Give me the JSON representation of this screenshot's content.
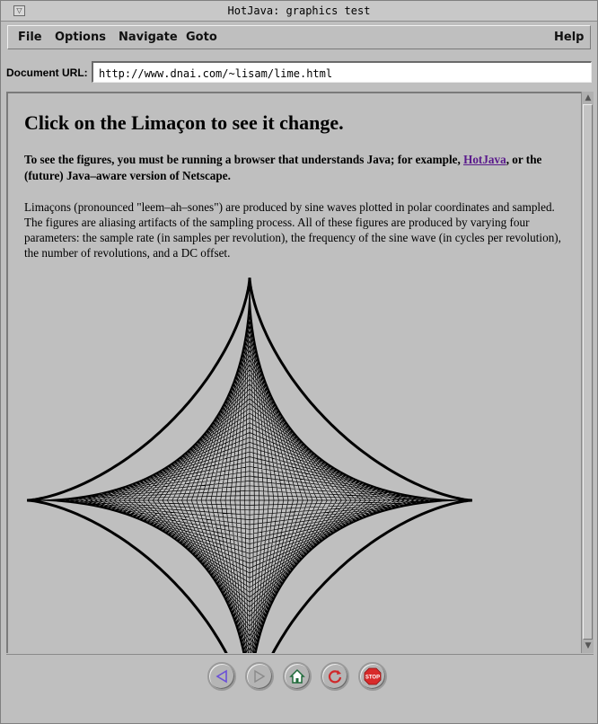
{
  "window": {
    "title": "HotJava: graphics test"
  },
  "menu": {
    "items": [
      "File",
      "Options",
      "Navigate",
      "Goto"
    ],
    "help": "Help"
  },
  "address": {
    "label": "Document URL:",
    "url": "http://www.dnai.com/~lisam/lime.html"
  },
  "page": {
    "heading": "Click on the Limaçon to see it change.",
    "intro_before_link": "To see the figures, you must be running a browser that understands Java; for example, ",
    "intro_link": "HotJava",
    "intro_after_link": ", or the (future) Java–aware version of Netscape.",
    "body": "Limaçons (pronounced \"leem–ah–sones\") are produced by sine waves plotted in polar coordinates and sampled. The figures are aliasing artifacts of the sampling process. All of these figures are produced by varying four parameters: the sample rate (in samples per revolution), the frequency of the sine wave (in cycles per revolution), the number of revolutions, and a DC offset."
  },
  "toolbar": {
    "buttons": [
      "back-icon",
      "forward-icon",
      "home-icon",
      "reload-icon",
      "stop-icon"
    ],
    "stop_label": "STOP"
  },
  "colors": {
    "background": "#bfbfbf",
    "link": "#5a1a8c",
    "back_arrow": "#6a4fd8",
    "home_icon": "#1f6b3a",
    "reload_icon": "#d0282a",
    "stop_sign": "#d82a2a"
  }
}
